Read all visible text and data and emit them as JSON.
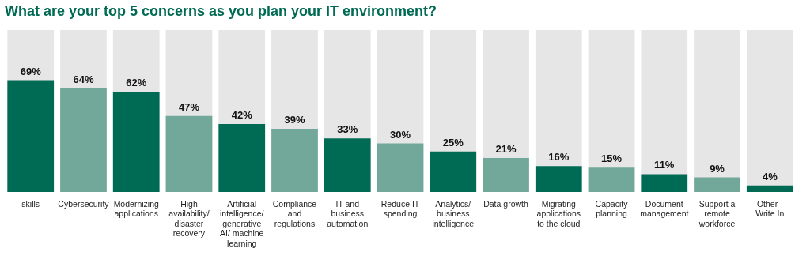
{
  "chart_data": {
    "type": "bar",
    "title": "What are your top 5 concerns as you plan your IT environment?",
    "categories": [
      "skills",
      "Cybersecurity",
      "Modernizing applications",
      "High availability/ disaster recovery",
      "Artificial intelligence/ generative AI/ machine learning",
      "Compliance and regulations",
      "IT and business automation",
      "Reduce IT spending",
      "Analytics/ business intelligence",
      "Data growth",
      "Migrating applications to the cloud",
      "Capacity planning",
      "Document management",
      "Support a remote workforce",
      "Other - Write In"
    ],
    "values": [
      69,
      64,
      62,
      47,
      42,
      39,
      33,
      30,
      25,
      21,
      16,
      15,
      11,
      9,
      4
    ],
    "value_labels": [
      "69%",
      "64%",
      "62%",
      "47%",
      "42%",
      "39%",
      "33%",
      "30%",
      "25%",
      "21%",
      "16%",
      "15%",
      "11%",
      "9%",
      "4%"
    ],
    "colors": [
      "#006b54",
      "#72a89a",
      "#006b54",
      "#72a89a",
      "#006b54",
      "#72a89a",
      "#006b54",
      "#72a89a",
      "#006b54",
      "#72a89a",
      "#006b54",
      "#72a89a",
      "#006b54",
      "#72a89a",
      "#006b54"
    ],
    "ylim": [
      0,
      100
    ],
    "tick_labels": "x"
  }
}
